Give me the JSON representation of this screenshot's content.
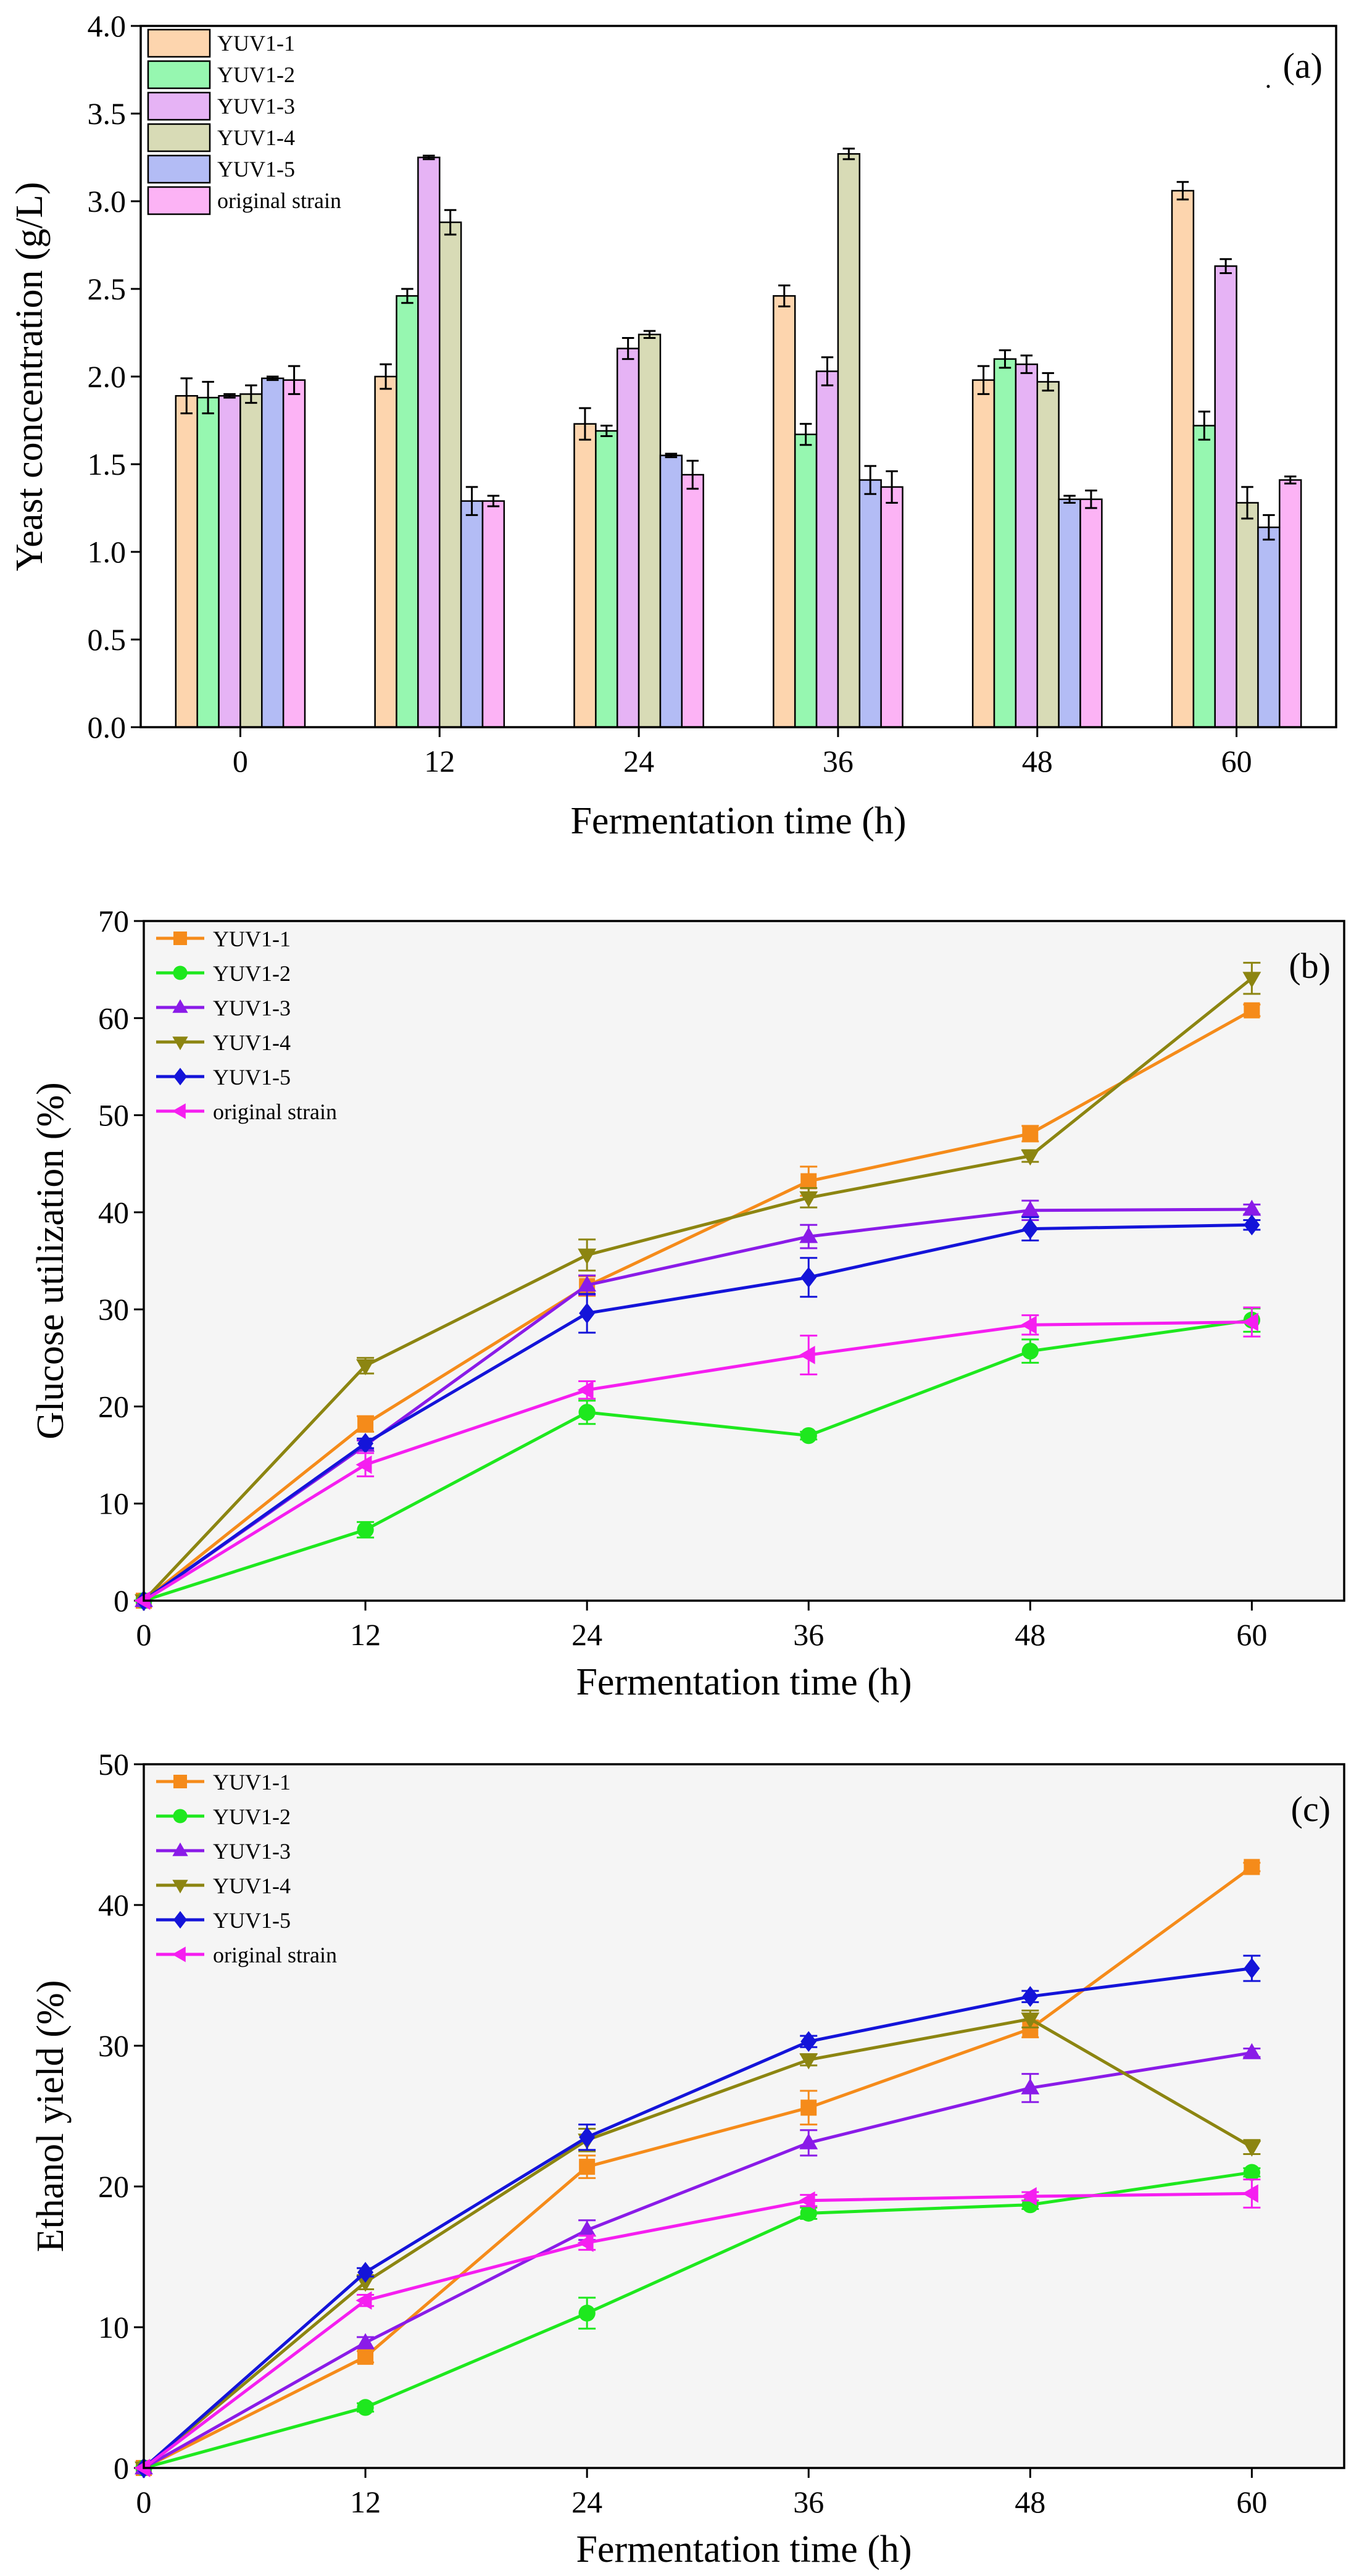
{
  "chart_data": [
    {
      "type": "bar",
      "panel_label": "(a)",
      "title": "",
      "xlabel": "Fermentation time (h)",
      "ylabel": "Yeast concentration (g/L)",
      "ylim": [
        0,
        4.0
      ],
      "yticks": [
        "0.0",
        "0.5",
        "1.0",
        "1.5",
        "2.0",
        "2.5",
        "3.0",
        "3.5",
        "4.0"
      ],
      "categories": [
        "0",
        "12",
        "24",
        "36",
        "48",
        "60"
      ],
      "legend_position": "top-left",
      "series": [
        {
          "name": "YUV1-1",
          "color": "#fdd5ae",
          "values": [
            1.89,
            2.0,
            1.73,
            2.46,
            1.98,
            3.06
          ],
          "errors": [
            0.1,
            0.07,
            0.09,
            0.06,
            0.08,
            0.05
          ]
        },
        {
          "name": "YUV1-2",
          "color": "#96f7b0",
          "values": [
            1.88,
            2.46,
            1.69,
            1.67,
            2.1,
            1.72
          ],
          "errors": [
            0.09,
            0.04,
            0.03,
            0.06,
            0.05,
            0.08
          ]
        },
        {
          "name": "YUV1-3",
          "color": "#e6b3f5",
          "values": [
            1.89,
            3.25,
            2.16,
            2.03,
            2.07,
            2.63
          ],
          "errors": [
            0.01,
            0.01,
            0.06,
            0.08,
            0.05,
            0.04
          ]
        },
        {
          "name": "YUV1-4",
          "color": "#d8dbb6",
          "values": [
            1.9,
            2.88,
            2.24,
            3.27,
            1.97,
            1.28
          ],
          "errors": [
            0.05,
            0.07,
            0.02,
            0.03,
            0.05,
            0.09
          ]
        },
        {
          "name": "YUV1-5",
          "color": "#b3bcf5",
          "values": [
            1.99,
            1.29,
            1.55,
            1.41,
            1.3,
            1.14
          ],
          "errors": [
            0.01,
            0.08,
            0.01,
            0.08,
            0.02,
            0.07
          ]
        },
        {
          "name": "original strain",
          "color": "#fcb3f5",
          "values": [
            1.98,
            1.29,
            1.44,
            1.37,
            1.3,
            1.41
          ],
          "errors": [
            0.08,
            0.03,
            0.08,
            0.09,
            0.05,
            0.02
          ]
        }
      ]
    },
    {
      "type": "line",
      "panel_label": "(b)",
      "title": "",
      "xlabel": "Fermentation time (h)",
      "ylabel": "Glucose utilization (%)",
      "xlim": [
        0,
        65
      ],
      "ylim": [
        0,
        70
      ],
      "x": [
        0,
        12,
        24,
        36,
        48,
        60
      ],
      "xticks": [
        0,
        12,
        24,
        36,
        48,
        60
      ],
      "yticks": [
        0,
        10,
        20,
        30,
        40,
        50,
        60,
        70
      ],
      "legend_position": "top-left",
      "series": [
        {
          "name": "YUV1-1",
          "color": "#f58b1a",
          "marker": "square",
          "values": [
            0,
            18.2,
            32.4,
            43.2,
            48.1,
            60.8
          ],
          "errors": [
            0,
            0.8,
            1.0,
            1.5,
            0.8,
            0.6
          ]
        },
        {
          "name": "YUV1-2",
          "color": "#1ee81e",
          "marker": "circle",
          "values": [
            0,
            7.3,
            19.4,
            17.0,
            25.7,
            28.9
          ],
          "errors": [
            0,
            0.8,
            1.2,
            0.4,
            1.2,
            1.2
          ]
        },
        {
          "name": "YUV1-3",
          "color": "#8a1be8",
          "marker": "triangle-up",
          "values": [
            0,
            16.0,
            32.5,
            37.5,
            40.2,
            40.3
          ],
          "errors": [
            0,
            0.5,
            1.0,
            1.2,
            1.0,
            0.5
          ]
        },
        {
          "name": "YUV1-4",
          "color": "#8c8511",
          "marker": "triangle-down",
          "values": [
            0,
            24.2,
            35.6,
            41.5,
            45.8,
            64.1
          ],
          "errors": [
            0,
            0.8,
            1.6,
            1.0,
            0.6,
            1.6
          ]
        },
        {
          "name": "YUV1-5",
          "color": "#1414d9",
          "marker": "diamond",
          "values": [
            0,
            16.2,
            29.6,
            33.3,
            38.3,
            38.7
          ],
          "errors": [
            0,
            0.5,
            2.0,
            2.0,
            1.2,
            0.5
          ]
        },
        {
          "name": "original strain",
          "color": "#f51ef0",
          "marker": "triangle-left",
          "values": [
            0,
            14.0,
            21.7,
            25.3,
            28.4,
            28.7
          ],
          "errors": [
            0,
            1.2,
            0.9,
            2.0,
            1.0,
            1.5
          ]
        }
      ]
    },
    {
      "type": "line",
      "panel_label": "(c)",
      "title": "",
      "xlabel": "Fermentation time (h)",
      "ylabel": "Ethanol yield (%)",
      "xlim": [
        0,
        65
      ],
      "ylim": [
        0,
        50
      ],
      "x": [
        0,
        12,
        24,
        36,
        48,
        60
      ],
      "xticks": [
        0,
        12,
        24,
        36,
        48,
        60
      ],
      "yticks": [
        0,
        10,
        20,
        30,
        40,
        50
      ],
      "legend_position": "top-left",
      "series": [
        {
          "name": "YUV1-1",
          "color": "#f58b1a",
          "marker": "square",
          "values": [
            0,
            7.9,
            21.4,
            25.6,
            31.2,
            42.7
          ],
          "errors": [
            0,
            0.4,
            0.8,
            1.2,
            0.6,
            0.3
          ]
        },
        {
          "name": "YUV1-2",
          "color": "#1ee81e",
          "marker": "circle",
          "values": [
            0,
            4.3,
            11.0,
            18.1,
            18.7,
            21.0
          ],
          "errors": [
            0,
            0.3,
            1.1,
            0.4,
            0.3,
            0.3
          ]
        },
        {
          "name": "YUV1-3",
          "color": "#8a1be8",
          "marker": "triangle-up",
          "values": [
            0,
            8.9,
            16.9,
            23.1,
            27.0,
            29.5
          ],
          "errors": [
            0,
            0.4,
            0.7,
            0.9,
            1.0,
            0.3
          ]
        },
        {
          "name": "YUV1-4",
          "color": "#8c8511",
          "marker": "triangle-down",
          "values": [
            0,
            13.2,
            23.3,
            29.0,
            31.9,
            22.8
          ],
          "errors": [
            0,
            0.5,
            0.8,
            0.4,
            0.6,
            0.5
          ]
        },
        {
          "name": "YUV1-5",
          "color": "#1414d9",
          "marker": "diamond",
          "values": [
            0,
            13.9,
            23.5,
            30.3,
            33.5,
            35.5
          ],
          "errors": [
            0,
            0.3,
            0.9,
            0.4,
            0.4,
            0.9
          ]
        },
        {
          "name": "original strain",
          "color": "#f51ef0",
          "marker": "triangle-left",
          "values": [
            0,
            11.9,
            16.0,
            19.0,
            19.3,
            19.5
          ],
          "errors": [
            0,
            0.4,
            0.5,
            0.4,
            0.3,
            1.0
          ]
        }
      ]
    }
  ]
}
